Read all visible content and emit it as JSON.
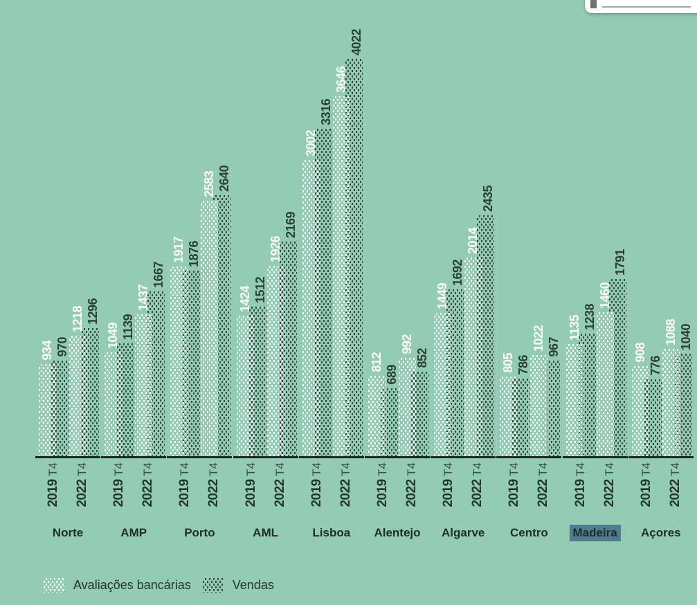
{
  "colors": {
    "background": "#93ccb2",
    "bar_light": "#ffffff",
    "bar_dark": "#374c41",
    "value_label_light": "#ffffff",
    "value_label_dark": "#2b4036",
    "region_label": "#1d2f26",
    "highlight_background": "#4e7d92",
    "axis_line": "#1b2722",
    "tooltip_background": "#ffffff"
  },
  "chart_data": {
    "type": "bar",
    "title": "",
    "xlabel": "",
    "ylabel": "",
    "ylim": [
      0,
      4022
    ],
    "gridlines": false,
    "legend_position": "bottom-left",
    "categories": [
      "Norte",
      "AMP",
      "Porto",
      "AML",
      "Lisboa",
      "Alentejo",
      "Algarve",
      "Centro",
      "Madeira",
      "Açores"
    ],
    "highlighted_category": "Madeira",
    "periods": [
      {
        "year": "2019",
        "quarter": "T4"
      },
      {
        "year": "2022",
        "quarter": "T4"
      }
    ],
    "series": [
      {
        "name": "Avaliações bancárias",
        "period": "2019 T4",
        "pattern": "light",
        "values": [
          934,
          1049,
          1917,
          1424,
          3002,
          812,
          1449,
          805,
          1135,
          908
        ]
      },
      {
        "name": "Vendas",
        "period": "2019 T4",
        "pattern": "dark",
        "values": [
          970,
          1139,
          1876,
          1512,
          3316,
          689,
          1692,
          786,
          1238,
          776
        ]
      },
      {
        "name": "Avaliações bancárias",
        "period": "2022 T4",
        "pattern": "light",
        "values": [
          1218,
          1437,
          2583,
          1926,
          3646,
          992,
          2014,
          1022,
          1460,
          1088
        ]
      },
      {
        "name": "Vendas",
        "period": "2022 T4",
        "pattern": "dark",
        "values": [
          1296,
          1667,
          2640,
          2169,
          4022,
          852,
          2435,
          967,
          1791,
          1040
        ]
      }
    ],
    "legend": [
      {
        "label": "Avaliações bancárias",
        "pattern": "light"
      },
      {
        "label": "Vendas",
        "pattern": "dark"
      }
    ]
  }
}
